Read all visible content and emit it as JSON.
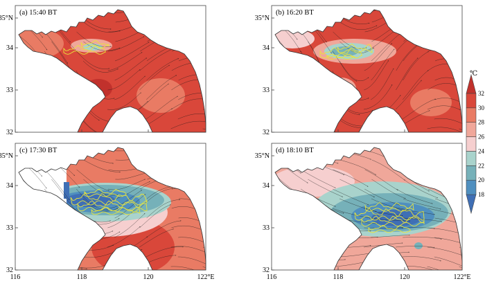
{
  "panels": [
    {
      "label": "(a) 15:40 BT",
      "phase": 0
    },
    {
      "label": "(b) 16:20 BT",
      "phase": 1
    },
    {
      "label": "(c) 17:30 BT",
      "phase": 2
    },
    {
      "label": "(d) 18:10 BT",
      "phase": 3
    }
  ],
  "axes": {
    "lon_ticks": [
      "116",
      "118",
      "120",
      "122°E"
    ],
    "lat_ticks": [
      "32",
      "33",
      "34",
      "35°N"
    ],
    "lon_range": [
      116,
      122
    ],
    "lat_range": [
      32,
      35.2
    ]
  },
  "colorbar": {
    "unit": "℃",
    "ticks": [
      "18",
      "20",
      "22",
      "24",
      "26",
      "28",
      "30",
      "32"
    ],
    "colors": [
      "#3f6fb5",
      "#4f8fbf",
      "#76b1b9",
      "#a9d3cc",
      "#f6cfcf",
      "#f0a79a",
      "#e97b64",
      "#d9473a",
      "#c1312c"
    ]
  },
  "colors": {
    "outline": "#333333",
    "streamline": "#1a1a1a",
    "contour": "#e8e43c",
    "frame": "#444444"
  }
}
